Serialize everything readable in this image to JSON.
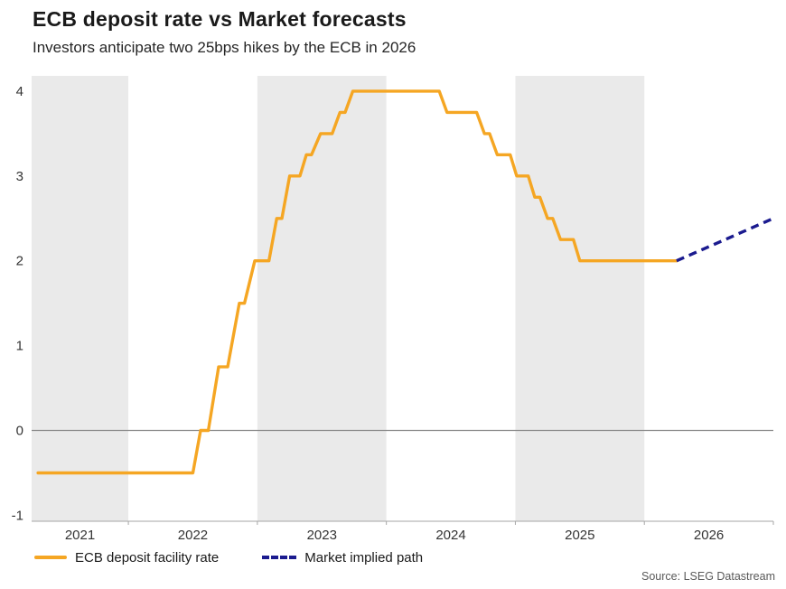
{
  "header": {
    "title": "ECB deposit rate vs Market forecasts",
    "subtitle": "Investors anticipate two 25bps hikes by the ECB in 2026"
  },
  "footer": {
    "source": "Source: LSEG Datastream"
  },
  "colors": {
    "history_line": "#F5A623",
    "forecast_line": "#1B1B8F",
    "year_band": "#EAEAEA",
    "zero_line": "#8A8A8A",
    "axis_line": "#A6A6A6",
    "tick_text": "#333333"
  },
  "chart_data": {
    "type": "line",
    "title": "ECB deposit rate vs Market forecasts",
    "subtitle": "Investors anticipate two 25bps hikes by the ECB in 2026",
    "x_unit": "year",
    "y_unit": "percent",
    "x_range": [
      2021.25,
      2027.0
    ],
    "y_range": [
      -1.07,
      4.18
    ],
    "x_ticks": [
      2021,
      2022,
      2023,
      2024,
      2025,
      2026
    ],
    "y_ticks": [
      -1,
      0,
      1,
      2,
      3,
      4
    ],
    "shaded_year_bands": [
      2021,
      2023,
      2025
    ],
    "zero_baseline": 0,
    "grid": false,
    "legend_position": "bottom-left",
    "series": [
      {
        "name": "ECB deposit facility rate",
        "style": "solid",
        "color": "#F5A623",
        "points": [
          [
            2021.3,
            -0.5
          ],
          [
            2022.5,
            -0.5
          ],
          [
            2022.56,
            0.0
          ],
          [
            2022.62,
            0.0
          ],
          [
            2022.7,
            0.75
          ],
          [
            2022.77,
            0.75
          ],
          [
            2022.86,
            1.5
          ],
          [
            2022.9,
            1.5
          ],
          [
            2022.98,
            2.0
          ],
          [
            2023.09,
            2.0
          ],
          [
            2023.15,
            2.5
          ],
          [
            2023.19,
            2.5
          ],
          [
            2023.25,
            3.0
          ],
          [
            2023.33,
            3.0
          ],
          [
            2023.38,
            3.25
          ],
          [
            2023.42,
            3.25
          ],
          [
            2023.49,
            3.5
          ],
          [
            2023.58,
            3.5
          ],
          [
            2023.64,
            3.75
          ],
          [
            2023.68,
            3.75
          ],
          [
            2023.74,
            4.0
          ],
          [
            2024.41,
            4.0
          ],
          [
            2024.47,
            3.75
          ],
          [
            2024.7,
            3.75
          ],
          [
            2024.76,
            3.5
          ],
          [
            2024.8,
            3.5
          ],
          [
            2024.86,
            3.25
          ],
          [
            2024.96,
            3.25
          ],
          [
            2025.01,
            3.0
          ],
          [
            2025.1,
            3.0
          ],
          [
            2025.15,
            2.75
          ],
          [
            2025.19,
            2.75
          ],
          [
            2025.25,
            2.5
          ],
          [
            2025.29,
            2.5
          ],
          [
            2025.35,
            2.25
          ],
          [
            2025.45,
            2.25
          ],
          [
            2025.5,
            2.0
          ],
          [
            2026.25,
            2.0
          ]
        ]
      },
      {
        "name": "Market implied path",
        "style": "dashed",
        "color": "#1B1B8F",
        "points": [
          [
            2026.25,
            2.0
          ],
          [
            2027.0,
            2.5
          ]
        ]
      }
    ]
  }
}
